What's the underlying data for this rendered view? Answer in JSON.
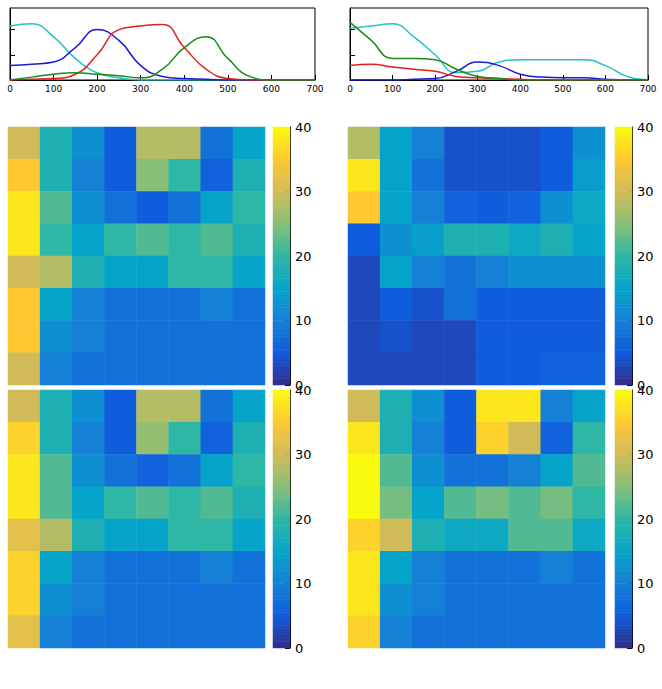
{
  "chart_data": [
    {
      "type": "line",
      "x": [
        0,
        50,
        100,
        150,
        200,
        250,
        300,
        350,
        400,
        450,
        500,
        550,
        600,
        650,
        700
      ],
      "xlim": [
        0,
        700
      ],
      "xticks": [
        0,
        100,
        200,
        300,
        400,
        500,
        600,
        700
      ],
      "ylim": [
        0,
        1
      ],
      "yticks": [
        0,
        0.35,
        0.7
      ],
      "tick_labels": "x",
      "series": [
        {
          "color": "#22c4c4",
          "values": [
            0.75,
            0.78,
            0.6,
            0.3,
            0.1,
            0.03,
            0,
            0,
            0,
            0,
            0,
            0,
            0,
            0,
            0
          ]
        },
        {
          "color": "#1a1ad6",
          "values": [
            0.2,
            0.22,
            0.25,
            0.45,
            0.7,
            0.55,
            0.2,
            0.05,
            0.02,
            0.01,
            0,
            0,
            0,
            0,
            0
          ]
        },
        {
          "color": "#e0201c",
          "values": [
            0,
            0.01,
            0.02,
            0.08,
            0.35,
            0.7,
            0.75,
            0.77,
            0.45,
            0.15,
            0.02,
            0,
            0,
            0,
            0
          ]
        },
        {
          "color": "#1a8a1a",
          "values": [
            0,
            0.04,
            0.08,
            0.1,
            0.08,
            0.06,
            0.03,
            0.15,
            0.45,
            0.6,
            0.3,
            0.05,
            0,
            0,
            0
          ]
        }
      ]
    },
    {
      "type": "line",
      "x": [
        0,
        50,
        100,
        150,
        200,
        250,
        300,
        350,
        400,
        450,
        500,
        550,
        600,
        650,
        700
      ],
      "xlim": [
        0,
        700
      ],
      "xticks": [
        0,
        100,
        200,
        300,
        400,
        500,
        600,
        700
      ],
      "ylim": [
        0,
        1
      ],
      "yticks": [
        0,
        0.35,
        0.7
      ],
      "tick_labels": "x",
      "series": [
        {
          "color": "#22c4c4",
          "values": [
            0.72,
            0.75,
            0.78,
            0.6,
            0.35,
            0.1,
            0.12,
            0.25,
            0.28,
            0.28,
            0.28,
            0.28,
            0.2,
            0.05,
            0
          ]
        },
        {
          "color": "#1a1ad6",
          "values": [
            0,
            0,
            0,
            0.01,
            0.02,
            0.12,
            0.25,
            0.2,
            0.08,
            0.04,
            0.03,
            0.03,
            0.01,
            0,
            0
          ]
        },
        {
          "color": "#e0201c",
          "values": [
            0.2,
            0.22,
            0.18,
            0.15,
            0.12,
            0.05,
            0.03,
            0.02,
            0.01,
            0,
            0,
            0,
            0,
            0,
            0
          ]
        },
        {
          "color": "#1a8a1a",
          "values": [
            0.8,
            0.55,
            0.3,
            0.3,
            0.28,
            0.15,
            0.05,
            0.02,
            0,
            0,
            0,
            0,
            0,
            0,
            0
          ]
        }
      ]
    },
    {
      "type": "heatmap",
      "color_range": [
        0,
        40
      ],
      "color_ticks": [
        0,
        10,
        20,
        30,
        40
      ],
      "tick_labels": false,
      "cells": [
        [
          30,
          18,
          12,
          5,
          28,
          28,
          8,
          15
        ],
        [
          35,
          18,
          10,
          5,
          25,
          20,
          6,
          18
        ],
        [
          38,
          22,
          12,
          8,
          5,
          8,
          15,
          20
        ],
        [
          38,
          20,
          15,
          20,
          22,
          20,
          22,
          18
        ],
        [
          30,
          28,
          18,
          15,
          15,
          20,
          20,
          15
        ],
        [
          35,
          15,
          10,
          8,
          8,
          8,
          10,
          8
        ],
        [
          35,
          12,
          10,
          8,
          8,
          8,
          8,
          8
        ],
        [
          30,
          10,
          8,
          8,
          8,
          8,
          8,
          8
        ]
      ]
    },
    {
      "type": "heatmap",
      "color_range": [
        0,
        40
      ],
      "color_ticks": [
        0,
        10,
        20,
        30,
        40
      ],
      "tick_labels": false,
      "cells": [
        [
          28,
          15,
          10,
          4,
          4,
          4,
          5,
          12
        ],
        [
          38,
          15,
          8,
          4,
          4,
          4,
          5,
          14
        ],
        [
          35,
          15,
          10,
          6,
          5,
          6,
          12,
          16
        ],
        [
          5,
          12,
          14,
          18,
          18,
          16,
          18,
          15
        ],
        [
          3,
          15,
          10,
          8,
          10,
          12,
          12,
          12
        ],
        [
          3,
          5,
          4,
          8,
          5,
          5,
          5,
          5
        ],
        [
          3,
          4,
          3,
          3,
          5,
          5,
          5,
          5
        ],
        [
          3,
          3,
          3,
          3,
          5,
          5,
          6,
          6
        ]
      ]
    },
    {
      "type": "heatmap",
      "color_range": [
        0,
        40
      ],
      "color_ticks": [
        0,
        10,
        20,
        30,
        40
      ],
      "tick_labels": false,
      "cells": [
        [
          30,
          18,
          12,
          5,
          28,
          28,
          8,
          15
        ],
        [
          36,
          18,
          10,
          5,
          26,
          20,
          6,
          18
        ],
        [
          38,
          22,
          12,
          8,
          6,
          8,
          15,
          20
        ],
        [
          38,
          22,
          15,
          20,
          22,
          20,
          22,
          18
        ],
        [
          32,
          28,
          18,
          15,
          15,
          20,
          20,
          15
        ],
        [
          36,
          15,
          10,
          8,
          8,
          8,
          10,
          8
        ],
        [
          36,
          12,
          10,
          8,
          8,
          8,
          8,
          8
        ],
        [
          32,
          10,
          8,
          8,
          8,
          8,
          8,
          8
        ]
      ]
    },
    {
      "type": "heatmap",
      "color_range": [
        0,
        40
      ],
      "color_ticks": [
        0,
        10,
        20,
        30,
        40
      ],
      "tick_labels": false,
      "cells": [
        [
          30,
          18,
          12,
          5,
          38,
          38,
          10,
          15
        ],
        [
          38,
          18,
          10,
          5,
          36,
          30,
          6,
          20
        ],
        [
          40,
          22,
          12,
          8,
          8,
          10,
          15,
          22
        ],
        [
          40,
          24,
          15,
          22,
          24,
          22,
          24,
          20
        ],
        [
          36,
          30,
          18,
          16,
          16,
          22,
          22,
          16
        ],
        [
          38,
          15,
          10,
          8,
          8,
          8,
          10,
          8
        ],
        [
          38,
          12,
          10,
          8,
          8,
          8,
          8,
          8
        ],
        [
          36,
          10,
          8,
          8,
          8,
          8,
          8,
          8
        ]
      ]
    }
  ]
}
